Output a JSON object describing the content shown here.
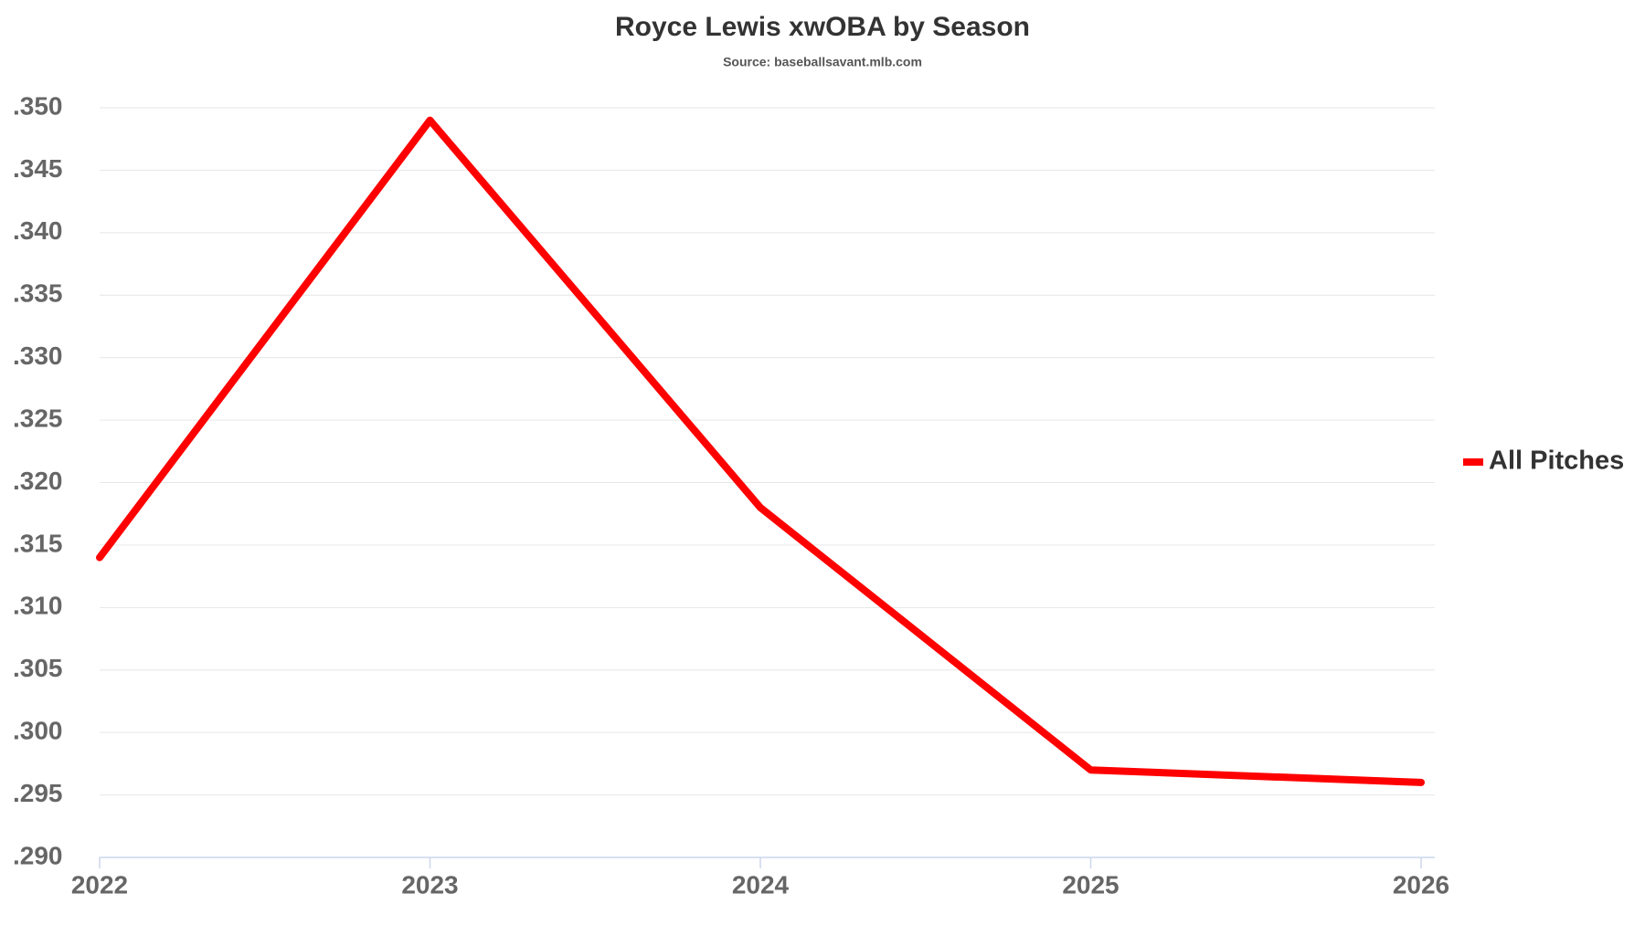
{
  "chart_data": {
    "type": "line",
    "title": "Royce Lewis xwOBA by Season",
    "subtitle": "Source: baseballsavant.mlb.com",
    "x": [
      2022,
      2023,
      2024,
      2025,
      2026
    ],
    "series": [
      {
        "name": "All Pitches",
        "color": "#ff0000",
        "values": [
          0.314,
          0.349,
          0.318,
          0.297,
          0.296
        ]
      }
    ],
    "xlim": [
      2022,
      2026
    ],
    "xticks": [
      2022,
      2023,
      2024,
      2025,
      2026
    ],
    "ylim": [
      0.29,
      0.35
    ],
    "yticks": [
      {
        "value": 0.29,
        "label": ".290"
      },
      {
        "value": 0.295,
        "label": ".295"
      },
      {
        "value": 0.3,
        "label": ".300"
      },
      {
        "value": 0.305,
        "label": ".305"
      },
      {
        "value": 0.31,
        "label": ".310"
      },
      {
        "value": 0.315,
        "label": ".315"
      },
      {
        "value": 0.32,
        "label": ".320"
      },
      {
        "value": 0.325,
        "label": ".325"
      },
      {
        "value": 0.33,
        "label": ".330"
      },
      {
        "value": 0.335,
        "label": ".335"
      },
      {
        "value": 0.34,
        "label": ".340"
      },
      {
        "value": 0.345,
        "label": ".345"
      },
      {
        "value": 0.35,
        "label": ".350"
      }
    ],
    "grid": true,
    "legend": "right"
  }
}
